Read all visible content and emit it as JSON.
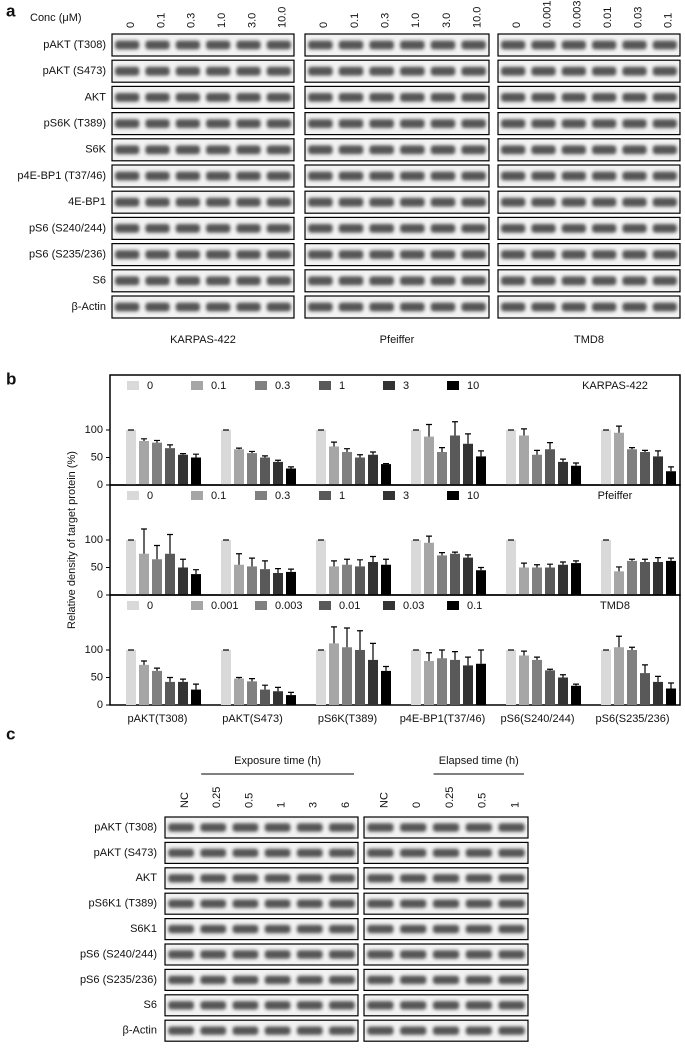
{
  "panel_a": {
    "label": "a",
    "conc_label": "Conc (μM)",
    "blots": [
      {
        "cell_line": "KARPAS-422",
        "lanes": [
          "0",
          "0.1",
          "0.3",
          "1.0",
          "3.0",
          "10.0"
        ]
      },
      {
        "cell_line": "Pfeiffer",
        "lanes": [
          "0",
          "0.1",
          "0.3",
          "1.0",
          "3.0",
          "10.0"
        ]
      },
      {
        "cell_line": "TMD8",
        "lanes": [
          "0",
          "0.001",
          "0.003",
          "0.01",
          "0.03",
          "0.1"
        ]
      }
    ],
    "rows": [
      "pAKT (T308)",
      "pAKT (S473)",
      "AKT",
      "pS6K (T389)",
      "S6K",
      "p4E-BP1 (T37/46)",
      "4E-BP1",
      "pS6 (S240/244)",
      "pS6 (S235/236)",
      "S6",
      "β-Actin"
    ]
  },
  "panel_b": {
    "label": "b",
    "ylabel": "Relative density of target protein (%)"
  },
  "chart_data": [
    {
      "type": "bar",
      "title": "KARPAS-422",
      "ylim": [
        0,
        200
      ],
      "yticks": [
        0,
        50,
        100
      ],
      "series": [
        {
          "name": "0",
          "color": "#d9d9d9",
          "values": [
            100,
            100,
            100,
            100,
            100,
            100
          ],
          "errors": [
            0,
            0,
            0,
            0,
            0,
            0
          ]
        },
        {
          "name": "0.1",
          "color": "#a6a6a6",
          "values": [
            80,
            65,
            70,
            88,
            90,
            95
          ],
          "errors": [
            4,
            2,
            8,
            22,
            12,
            12
          ]
        },
        {
          "name": "0.3",
          "color": "#808080",
          "values": [
            77,
            58,
            60,
            60,
            55,
            65
          ],
          "errors": [
            4,
            3,
            6,
            8,
            8,
            3
          ]
        },
        {
          "name": "1",
          "color": "#595959",
          "values": [
            67,
            50,
            50,
            90,
            65,
            60
          ],
          "errors": [
            6,
            3,
            5,
            25,
            12,
            3
          ]
        },
        {
          "name": "3",
          "color": "#333333",
          "values": [
            55,
            42,
            55,
            75,
            42,
            52
          ],
          "errors": [
            2,
            3,
            5,
            18,
            5,
            10
          ]
        },
        {
          "name": "10",
          "color": "#000000",
          "values": [
            50,
            30,
            38,
            52,
            35,
            25
          ],
          "errors": [
            6,
            3,
            1,
            10,
            5,
            8
          ]
        }
      ]
    },
    {
      "type": "bar",
      "title": "Pfeiffer",
      "ylim": [
        0,
        200
      ],
      "yticks": [
        0,
        50,
        100
      ],
      "series": [
        {
          "name": "0",
          "color": "#d9d9d9",
          "values": [
            100,
            100,
            100,
            100,
            100,
            100
          ],
          "errors": [
            0,
            0,
            0,
            0,
            0,
            0
          ]
        },
        {
          "name": "0.1",
          "color": "#a6a6a6",
          "values": [
            75,
            55,
            52,
            95,
            50,
            43
          ],
          "errors": [
            45,
            20,
            10,
            12,
            8,
            8
          ]
        },
        {
          "name": "0.3",
          "color": "#808080",
          "values": [
            65,
            52,
            55,
            72,
            50,
            62
          ],
          "errors": [
            25,
            15,
            10,
            5,
            5,
            3
          ]
        },
        {
          "name": "1",
          "color": "#595959",
          "values": [
            75,
            47,
            52,
            75,
            50,
            60
          ],
          "errors": [
            35,
            15,
            12,
            3,
            6,
            5
          ]
        },
        {
          "name": "3",
          "color": "#333333",
          "values": [
            50,
            40,
            60,
            68,
            55,
            60
          ],
          "errors": [
            15,
            8,
            10,
            5,
            5,
            8
          ]
        },
        {
          "name": "10",
          "color": "#000000",
          "values": [
            38,
            42,
            55,
            45,
            58,
            62
          ],
          "errors": [
            8,
            5,
            10,
            5,
            4,
            5
          ]
        }
      ]
    },
    {
      "type": "bar",
      "title": "TMD8",
      "ylim": [
        0,
        200
      ],
      "yticks": [
        0,
        50,
        100
      ],
      "categories": [
        "pAKT(T308)",
        "pAKT(S473)",
        "pS6K(T389)",
        "p4E-BP1(T37/46)",
        "pS6(S240/244)",
        "pS6(S235/236)"
      ],
      "series": [
        {
          "name": "0",
          "color": "#d9d9d9",
          "values": [
            100,
            100,
            100,
            100,
            100,
            100
          ],
          "errors": [
            0,
            0,
            0,
            0,
            0,
            0
          ]
        },
        {
          "name": "0.001",
          "color": "#a6a6a6",
          "values": [
            73,
            48,
            112,
            80,
            90,
            105
          ],
          "errors": [
            7,
            2,
            30,
            15,
            8,
            20
          ]
        },
        {
          "name": "0.003",
          "color": "#808080",
          "values": [
            62,
            43,
            105,
            85,
            82,
            100
          ],
          "errors": [
            5,
            5,
            35,
            15,
            5,
            5
          ]
        },
        {
          "name": "0.01",
          "color": "#595959",
          "values": [
            42,
            28,
            100,
            82,
            63,
            58
          ],
          "errors": [
            8,
            8,
            35,
            15,
            2,
            15
          ]
        },
        {
          "name": "0.03",
          "color": "#333333",
          "values": [
            42,
            25,
            82,
            72,
            50,
            42
          ],
          "errors": [
            5,
            7,
            30,
            15,
            5,
            10
          ]
        },
        {
          "name": "0.1",
          "color": "#000000",
          "values": [
            28,
            18,
            62,
            75,
            35,
            30
          ],
          "errors": [
            10,
            5,
            8,
            25,
            3,
            10
          ]
        }
      ]
    }
  ],
  "panel_c": {
    "label": "c",
    "groups": [
      {
        "title": "Exposure time (h)",
        "lanes": [
          "NC",
          "0.25",
          "0.5",
          "1",
          "3",
          "6"
        ]
      },
      {
        "title": "Elapsed time (h)",
        "lanes": [
          "NC",
          "0",
          "0.25",
          "0.5",
          "1"
        ]
      }
    ],
    "rows": [
      "pAKT (T308)",
      "pAKT (S473)",
      "AKT",
      "pS6K1 (T389)",
      "S6K1",
      "pS6 (S240/244)",
      "pS6 (S235/236)",
      "S6",
      "β-Actin"
    ]
  }
}
